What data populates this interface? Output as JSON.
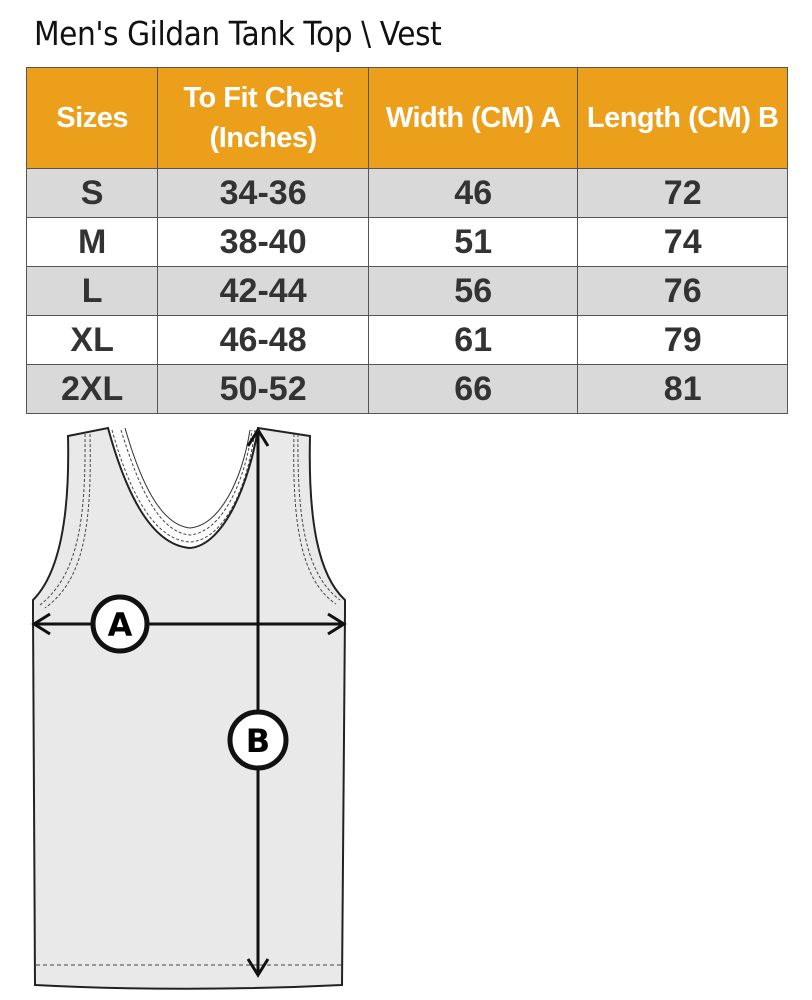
{
  "title": "Men's Gildan Tank Top \\ Vest",
  "table": {
    "headers": [
      "Sizes",
      "To Fit Chest (Inches)",
      "Width (CM) A",
      "Length  (CM) B"
    ],
    "rows": [
      [
        "S",
        "34-36",
        "46",
        "72"
      ],
      [
        "M",
        "38-40",
        "51",
        "74"
      ],
      [
        "L",
        "42-44",
        "56",
        "76"
      ],
      [
        "XL",
        "46-48",
        "61",
        "79"
      ],
      [
        "2XL",
        "50-52",
        "66",
        "81"
      ]
    ]
  },
  "diagram": {
    "label_a": "A",
    "label_b": "B"
  },
  "colors": {
    "header": "#eb9f1a",
    "stripe": "#d9d9d9",
    "garment": "#e9e9e9"
  }
}
